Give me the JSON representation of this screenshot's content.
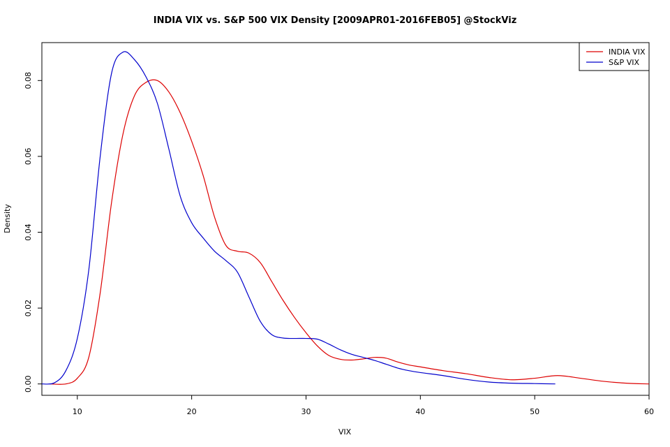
{
  "chart_data": {
    "type": "line",
    "title": "INDIA VIX vs. S&P 500 VIX Density [2009APR01-2016FEB05] @StockViz",
    "xlabel": "VIX",
    "ylabel": "Density",
    "xlim": [
      6.9,
      60.0
    ],
    "ylim": [
      -0.003,
      0.09
    ],
    "x_ticks": [
      10,
      20,
      30,
      40,
      50,
      60
    ],
    "y_ticks": [
      0.0,
      0.02,
      0.04,
      0.06,
      0.08
    ],
    "x_tick_labels": [
      "10",
      "20",
      "30",
      "40",
      "50",
      "60"
    ],
    "y_tick_labels": [
      "0.00",
      "0.02",
      "0.04",
      "0.06",
      "0.08"
    ],
    "grid": false,
    "legend_position": "top-right",
    "series": [
      {
        "name": "INDIA VIX",
        "color": "#dd0000",
        "x": [
          7.6,
          9,
          10,
          11,
          12,
          13,
          14,
          15,
          16,
          17,
          18,
          19,
          20,
          21,
          22,
          23,
          24,
          25,
          26,
          27,
          28,
          29,
          30,
          31,
          32,
          33,
          34,
          35,
          36,
          37,
          38,
          39,
          40,
          42,
          44,
          46,
          48,
          50,
          52,
          54,
          56,
          58,
          60
        ],
        "y": [
          0.0,
          0.0,
          0.0015,
          0.007,
          0.024,
          0.048,
          0.066,
          0.076,
          0.0795,
          0.08,
          0.077,
          0.0715,
          0.064,
          0.055,
          0.044,
          0.0365,
          0.035,
          0.0345,
          0.032,
          0.027,
          0.022,
          0.0175,
          0.0135,
          0.01,
          0.0075,
          0.0065,
          0.0063,
          0.0066,
          0.007,
          0.0068,
          0.0058,
          0.005,
          0.0045,
          0.0035,
          0.0027,
          0.0017,
          0.0011,
          0.0015,
          0.0022,
          0.0015,
          0.0007,
          0.0002,
          0.0
        ]
      },
      {
        "name": "S&P VIX",
        "color": "#0000cc",
        "x": [
          6.9,
          8,
          9,
          10,
          11,
          12,
          13,
          14,
          15,
          16,
          17,
          18,
          19,
          20,
          21,
          22,
          23,
          24,
          25,
          26,
          27,
          28,
          29,
          30,
          31,
          32,
          33,
          34,
          35,
          36,
          37,
          38,
          39,
          40,
          42,
          44,
          46,
          48,
          50,
          51.8
        ],
        "y": [
          0.0,
          0.0003,
          0.0035,
          0.012,
          0.03,
          0.06,
          0.082,
          0.0875,
          0.0855,
          0.081,
          0.074,
          0.062,
          0.0495,
          0.0425,
          0.0385,
          0.035,
          0.0325,
          0.0295,
          0.023,
          0.0165,
          0.013,
          0.0121,
          0.012,
          0.012,
          0.0118,
          0.0105,
          0.009,
          0.0078,
          0.007,
          0.0062,
          0.0052,
          0.0042,
          0.0035,
          0.003,
          0.0022,
          0.0012,
          0.0005,
          0.0002,
          0.0001,
          0.0
        ]
      }
    ]
  }
}
